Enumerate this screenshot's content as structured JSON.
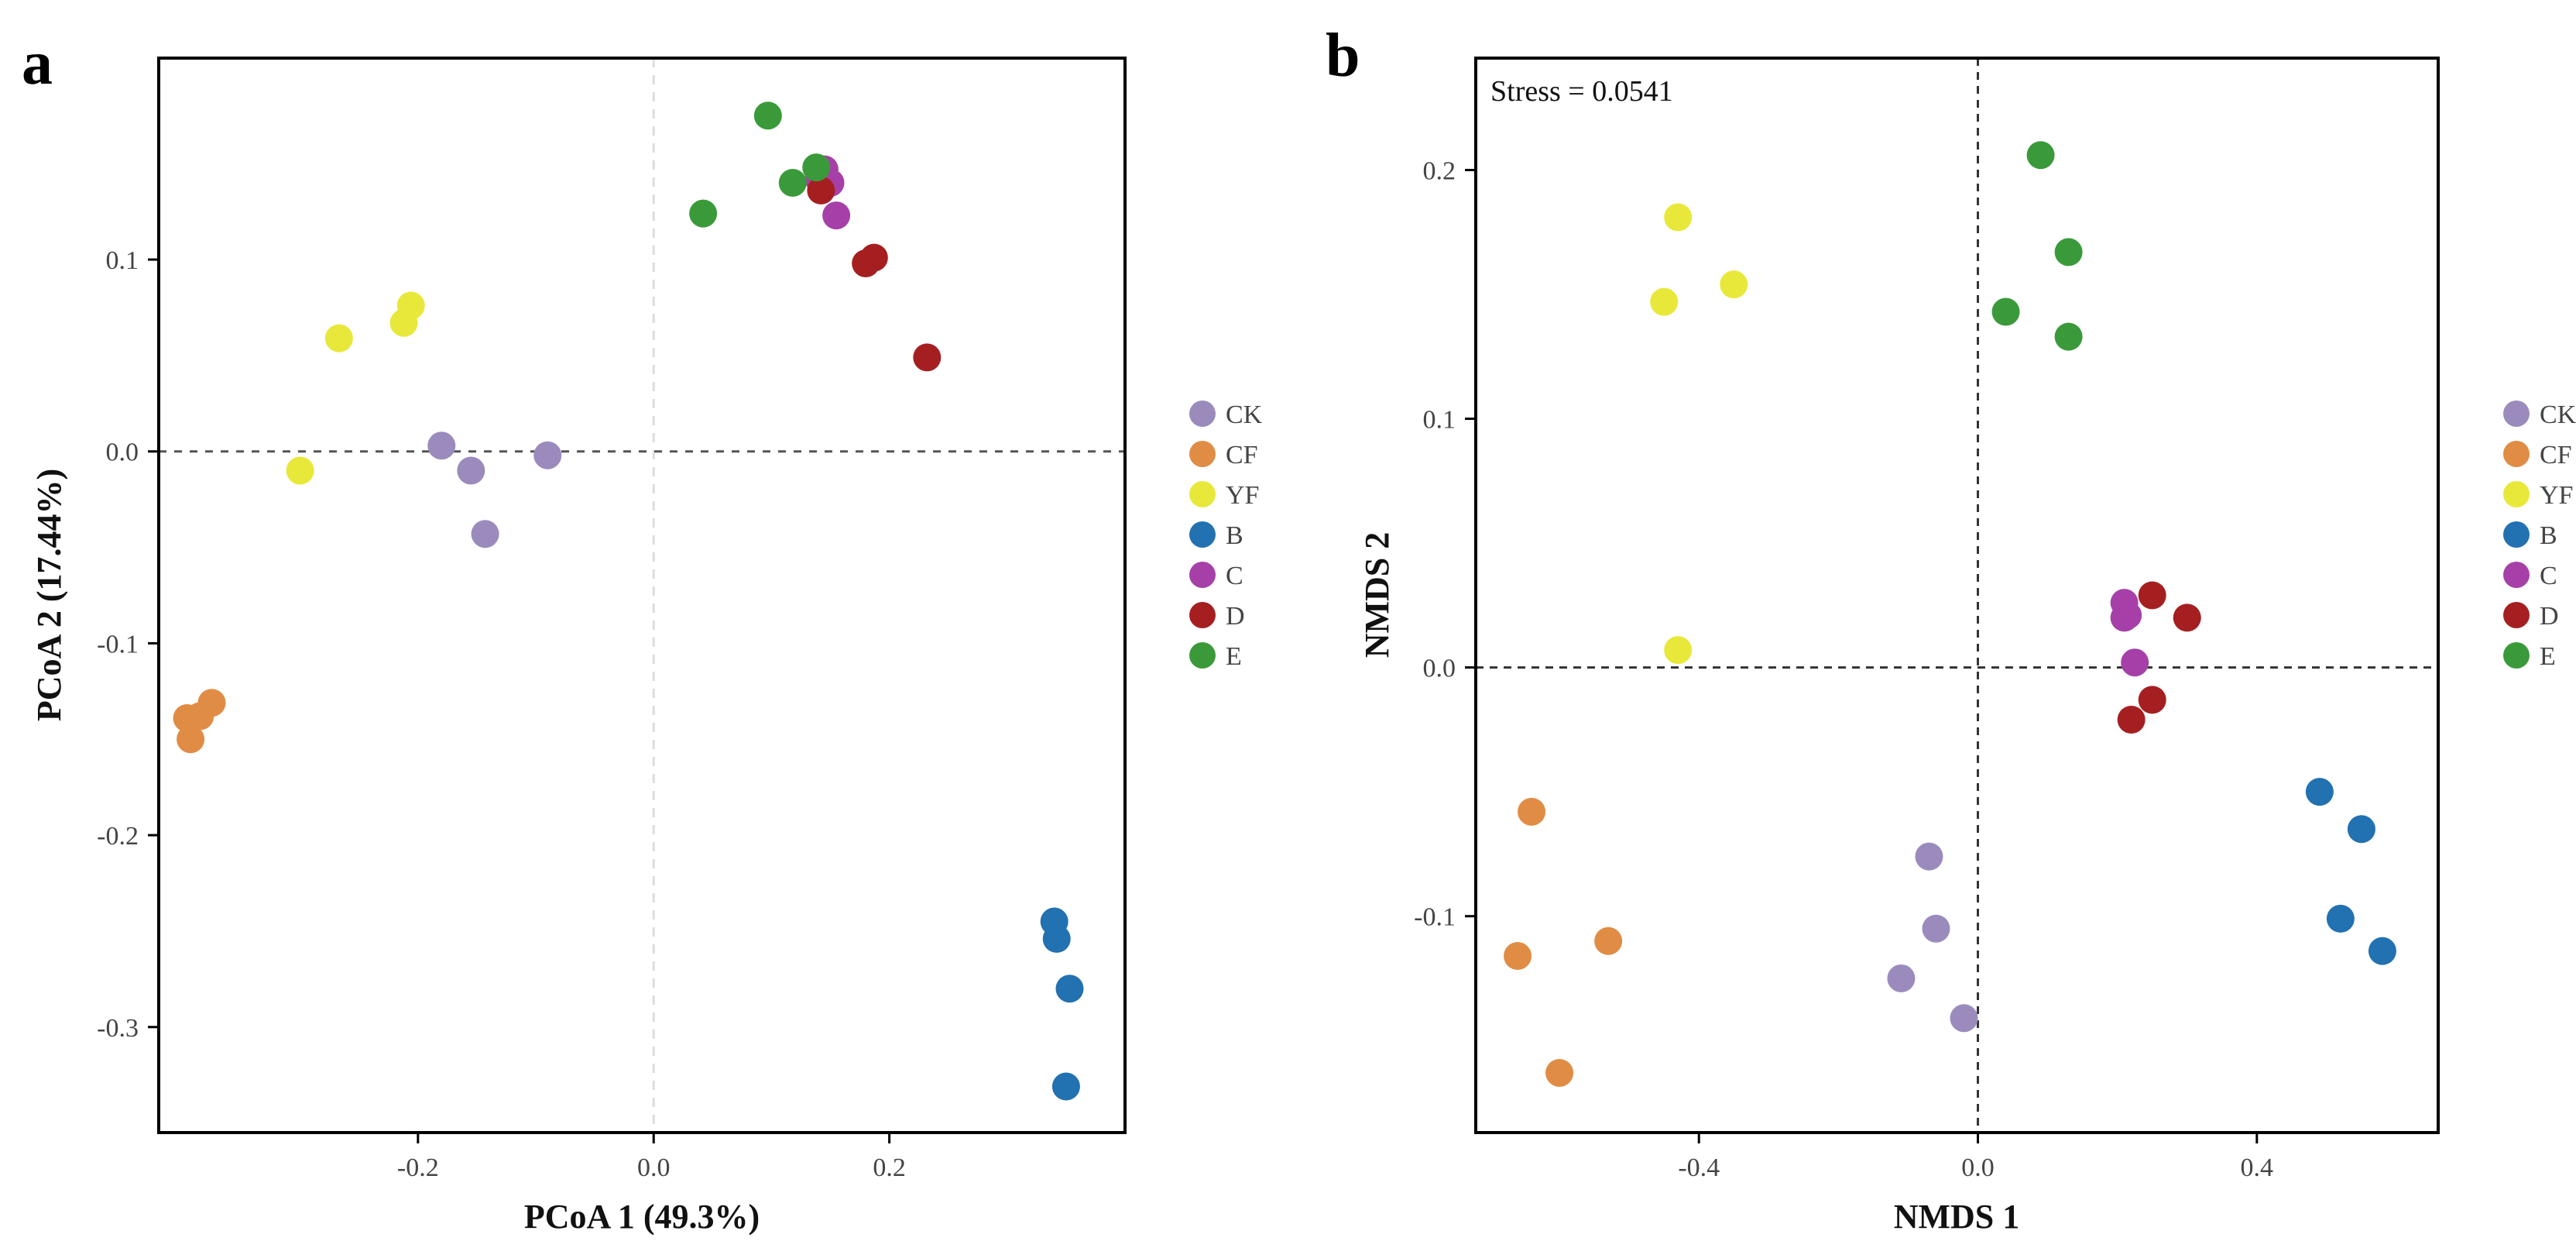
{
  "colors": {
    "CK": "#9b8bbd",
    "CF": "#e08c45",
    "YF": "#e8e83a",
    "B": "#2271b1",
    "C": "#a640a8",
    "D": "#a51f21",
    "E": "#3a9a3a"
  },
  "chart_data": [
    {
      "type": "scatter",
      "panel": "a",
      "title": "",
      "xlabel": "PCoA 1 (49.3%)",
      "ylabel": "PCoA 2 (17.44%)",
      "xlim": [
        -0.42,
        0.4
      ],
      "ylim": [
        -0.355,
        0.205
      ],
      "xticks": [
        -0.2,
        0.0,
        0.2
      ],
      "xtick_labels": [
        "-0.2",
        "0.0",
        "0.2"
      ],
      "yticks": [
        -0.3,
        -0.2,
        -0.1,
        0.0,
        0.1
      ],
      "ytick_labels": [
        "-0.3",
        "-0.2",
        "-0.1",
        "0.0",
        "0.1"
      ],
      "grid": false,
      "reference_lines": [
        "x=0 dashed",
        "y=0 dashed"
      ],
      "legend": "right",
      "series": [
        {
          "name": "CK",
          "points": [
            [
              -0.18,
              0.003
            ],
            [
              -0.155,
              -0.01
            ],
            [
              -0.143,
              -0.043
            ],
            [
              -0.09,
              -0.002
            ]
          ]
        },
        {
          "name": "CF",
          "points": [
            [
              -0.396,
              -0.139
            ],
            [
              -0.385,
              -0.138
            ],
            [
              -0.393,
              -0.15
            ],
            [
              -0.375,
              -0.131
            ]
          ]
        },
        {
          "name": "YF",
          "points": [
            [
              -0.3,
              -0.01
            ],
            [
              -0.267,
              0.059
            ],
            [
              -0.212,
              0.067
            ],
            [
              -0.206,
              0.076
            ]
          ]
        },
        {
          "name": "B",
          "points": [
            [
              0.34,
              -0.245
            ],
            [
              0.342,
              -0.254
            ],
            [
              0.353,
              -0.28
            ],
            [
              0.35,
              -0.331
            ]
          ]
        },
        {
          "name": "C",
          "points": [
            [
              0.145,
              0.147
            ],
            [
              0.15,
              0.14
            ],
            [
              0.155,
              0.123
            ],
            [
              0.14,
              0.142
            ]
          ]
        },
        {
          "name": "D",
          "points": [
            [
              0.142,
              0.136
            ],
            [
              0.18,
              0.098
            ],
            [
              0.187,
              0.101
            ],
            [
              0.232,
              0.049
            ]
          ]
        },
        {
          "name": "E",
          "points": [
            [
              0.042,
              0.124
            ],
            [
              0.097,
              0.175
            ],
            [
              0.118,
              0.14
            ],
            [
              0.138,
              0.148
            ]
          ]
        }
      ]
    },
    {
      "type": "scatter",
      "panel": "b",
      "title": "",
      "annotation": "Stress = 0.0541",
      "xlabel": "NMDS 1",
      "ylabel": "NMDS 2",
      "xlim": [
        -0.72,
        0.66
      ],
      "ylim": [
        -0.187,
        0.245
      ],
      "xticks": [
        -0.4,
        0.0,
        0.4
      ],
      "xtick_labels": [
        "-0.4",
        "0.0",
        "0.4"
      ],
      "yticks": [
        -0.1,
        0.0,
        0.1,
        0.2
      ],
      "ytick_labels": [
        "-0.1",
        "0.0",
        "0.1",
        "0.2"
      ],
      "grid": false,
      "reference_lines": [
        "x=0 dashed",
        "y=0 dashed"
      ],
      "legend": "right",
      "series": [
        {
          "name": "CK",
          "points": [
            [
              -0.11,
              -0.125
            ],
            [
              -0.06,
              -0.105
            ],
            [
              -0.07,
              -0.076
            ],
            [
              -0.02,
              -0.141
            ]
          ]
        },
        {
          "name": "CF",
          "points": [
            [
              -0.64,
              -0.058
            ],
            [
              -0.66,
              -0.116
            ],
            [
              -0.53,
              -0.11
            ],
            [
              -0.6,
              -0.163
            ]
          ]
        },
        {
          "name": "YF",
          "points": [
            [
              -0.43,
              0.181
            ],
            [
              -0.45,
              0.147
            ],
            [
              -0.35,
              0.154
            ],
            [
              -0.43,
              0.007
            ]
          ]
        },
        {
          "name": "B",
          "points": [
            [
              0.49,
              -0.05
            ],
            [
              0.55,
              -0.065
            ],
            [
              0.52,
              -0.101
            ],
            [
              0.58,
              -0.114
            ]
          ]
        },
        {
          "name": "C",
          "points": [
            [
              0.21,
              0.026
            ],
            [
              0.21,
              0.02
            ],
            [
              0.215,
              0.021
            ],
            [
              0.225,
              0.002
            ]
          ]
        },
        {
          "name": "D",
          "points": [
            [
              0.25,
              0.029
            ],
            [
              0.3,
              0.02
            ],
            [
              0.22,
              -0.021
            ],
            [
              0.25,
              -0.013
            ]
          ]
        },
        {
          "name": "E",
          "points": [
            [
              0.09,
              0.206
            ],
            [
              0.13,
              0.167
            ],
            [
              0.04,
              0.143
            ],
            [
              0.13,
              0.133
            ]
          ]
        }
      ]
    }
  ]
}
